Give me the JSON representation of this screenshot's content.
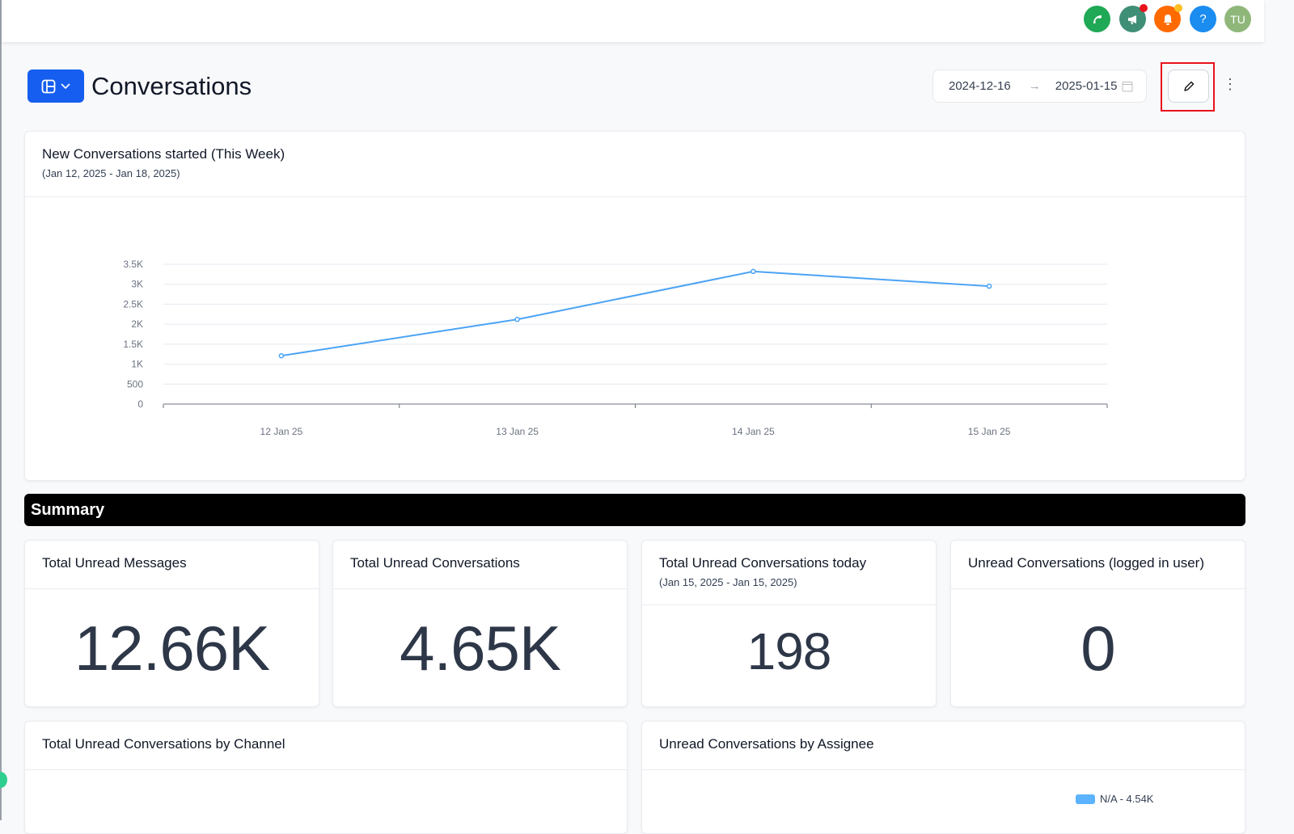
{
  "topbar": {
    "icons": [
      {
        "name": "phone-icon",
        "color": "#1fa855"
      },
      {
        "name": "megaphone-icon",
        "color": "#3f8f76",
        "badge": "#e8121c"
      },
      {
        "name": "bell-icon",
        "color": "#ff6a00",
        "badge": "#fbbf24"
      },
      {
        "name": "help-icon",
        "label": "?",
        "color": "#1b8cf0"
      }
    ],
    "avatar": {
      "initials": "TU",
      "color": "#8fb77a"
    }
  },
  "header": {
    "title": "Conversations",
    "date_start": "2024-12-16",
    "date_end": "2025-01-15",
    "accent": "#155eef"
  },
  "line_card": {
    "title": "New Conversations started (This Week)",
    "subtitle": "(Jan 12, 2025 - Jan 18, 2025)"
  },
  "chart_data": {
    "type": "line",
    "categories": [
      "12 Jan 25",
      "13 Jan 25",
      "14 Jan 25",
      "15 Jan 25"
    ],
    "values": [
      1210,
      2120,
      3320,
      2950
    ],
    "yticks": [
      "0",
      "500",
      "1K",
      "1.5K",
      "2K",
      "2.5K",
      "3K",
      "3.5K"
    ],
    "ylim": [
      0,
      3500
    ],
    "grid": true,
    "color": "#4ba3f5"
  },
  "summary": {
    "title": "Summary"
  },
  "stats": [
    {
      "title": "Total Unread Messages",
      "value": "12.66K"
    },
    {
      "title": "Total Unread Conversations",
      "value": "4.65K"
    },
    {
      "title": "Total Unread Conversations today",
      "subtitle": "(Jan 15, 2025 - Jan 15, 2025)",
      "value": "198"
    },
    {
      "title": "Unread Conversations (logged in user)",
      "value": "0"
    }
  ],
  "bottom": {
    "channel_title": "Total Unread Conversations by Channel",
    "assignee_title": "Unread Conversations by Assignee",
    "legend": [
      {
        "label": "N/A - 4.54K",
        "color": "#5cb3ff"
      }
    ]
  }
}
